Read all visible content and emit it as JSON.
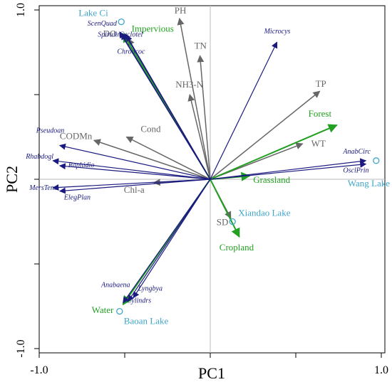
{
  "chart_data": {
    "type": "biplot",
    "xlabel": "PC1",
    "ylabel": "PC2",
    "xlim": [
      -1.0,
      1.0
    ],
    "ylim": [
      -1.0,
      1.0
    ],
    "x_ticks": [
      "-1.0",
      "1.0"
    ],
    "y_ticks": [
      "1.0",
      "-1.0"
    ],
    "colors": {
      "species": "#1a1a80",
      "environment": "#666666",
      "land_use": "#22a022",
      "sites": "#3fa5c9",
      "zero_line": "#bbbbbb"
    },
    "species_vectors": [
      {
        "name": "Microcys",
        "x": 0.39,
        "y": 0.81
      },
      {
        "name": "AnabCirc",
        "x": 0.91,
        "y": 0.11
      },
      {
        "name": "OsclPrin",
        "x": 0.91,
        "y": 0.09
      },
      {
        "name": "ScenQuad",
        "x": -0.53,
        "y": 0.87
      },
      {
        "name": "Cyclotel",
        "x": -0.5,
        "y": 0.86
      },
      {
        "name": "Spirulin",
        "x": -0.52,
        "y": 0.86
      },
      {
        "name": "Chroococ",
        "x": -0.49,
        "y": 0.85
      },
      {
        "name": "Pseudoan",
        "x": -0.88,
        "y": 0.2
      },
      {
        "name": "Rhabdogl",
        "x": -0.92,
        "y": 0.11
      },
      {
        "name": "Raphidio",
        "x": -0.88,
        "y": 0.08
      },
      {
        "name": "MersTenu",
        "x": -0.92,
        "y": -0.05
      },
      {
        "name": "ElegPlan",
        "x": -0.88,
        "y": -0.07
      },
      {
        "name": "Anabaena",
        "x": -0.45,
        "y": -0.7
      },
      {
        "name": "Lyngbya",
        "x": -0.48,
        "y": -0.72
      },
      {
        "name": "Cylindrs",
        "x": -0.51,
        "y": -0.73
      }
    ],
    "environment_vectors": [
      {
        "name": "PH",
        "x": -0.18,
        "y": 0.95
      },
      {
        "name": "TN",
        "x": -0.06,
        "y": 0.73
      },
      {
        "name": "NH3-N",
        "x": -0.12,
        "y": 0.5
      },
      {
        "name": "TP",
        "x": 0.64,
        "y": 0.52
      },
      {
        "name": "WT",
        "x": 0.54,
        "y": 0.21
      },
      {
        "name": "Cond",
        "x": -0.49,
        "y": 0.25
      },
      {
        "name": "CODMn",
        "x": -0.68,
        "y": 0.23
      },
      {
        "name": "DO",
        "x": -0.48,
        "y": 0.83
      },
      {
        "name": "Chl-a",
        "x": -0.33,
        "y": -0.02
      },
      {
        "name": "SD",
        "x": 0.12,
        "y": -0.23
      }
    ],
    "land_use_vectors": [
      {
        "name": "Impervious",
        "x": -0.51,
        "y": 0.86
      },
      {
        "name": "Forest",
        "x": 0.74,
        "y": 0.32
      },
      {
        "name": "Grassland",
        "x": 0.23,
        "y": 0.02
      },
      {
        "name": "Cropland",
        "x": 0.17,
        "y": -0.34
      },
      {
        "name": "Water",
        "x": -0.51,
        "y": -0.74
      }
    ],
    "sites": [
      {
        "name": "Lake Ci",
        "x": -0.52,
        "y": 0.93
      },
      {
        "name": "Wang Lake",
        "x": 0.97,
        "y": 0.11
      },
      {
        "name": "Xiandao Lake",
        "x": 0.13,
        "y": -0.25
      },
      {
        "name": "Baoan Lake",
        "x": -0.53,
        "y": -0.78
      }
    ]
  }
}
